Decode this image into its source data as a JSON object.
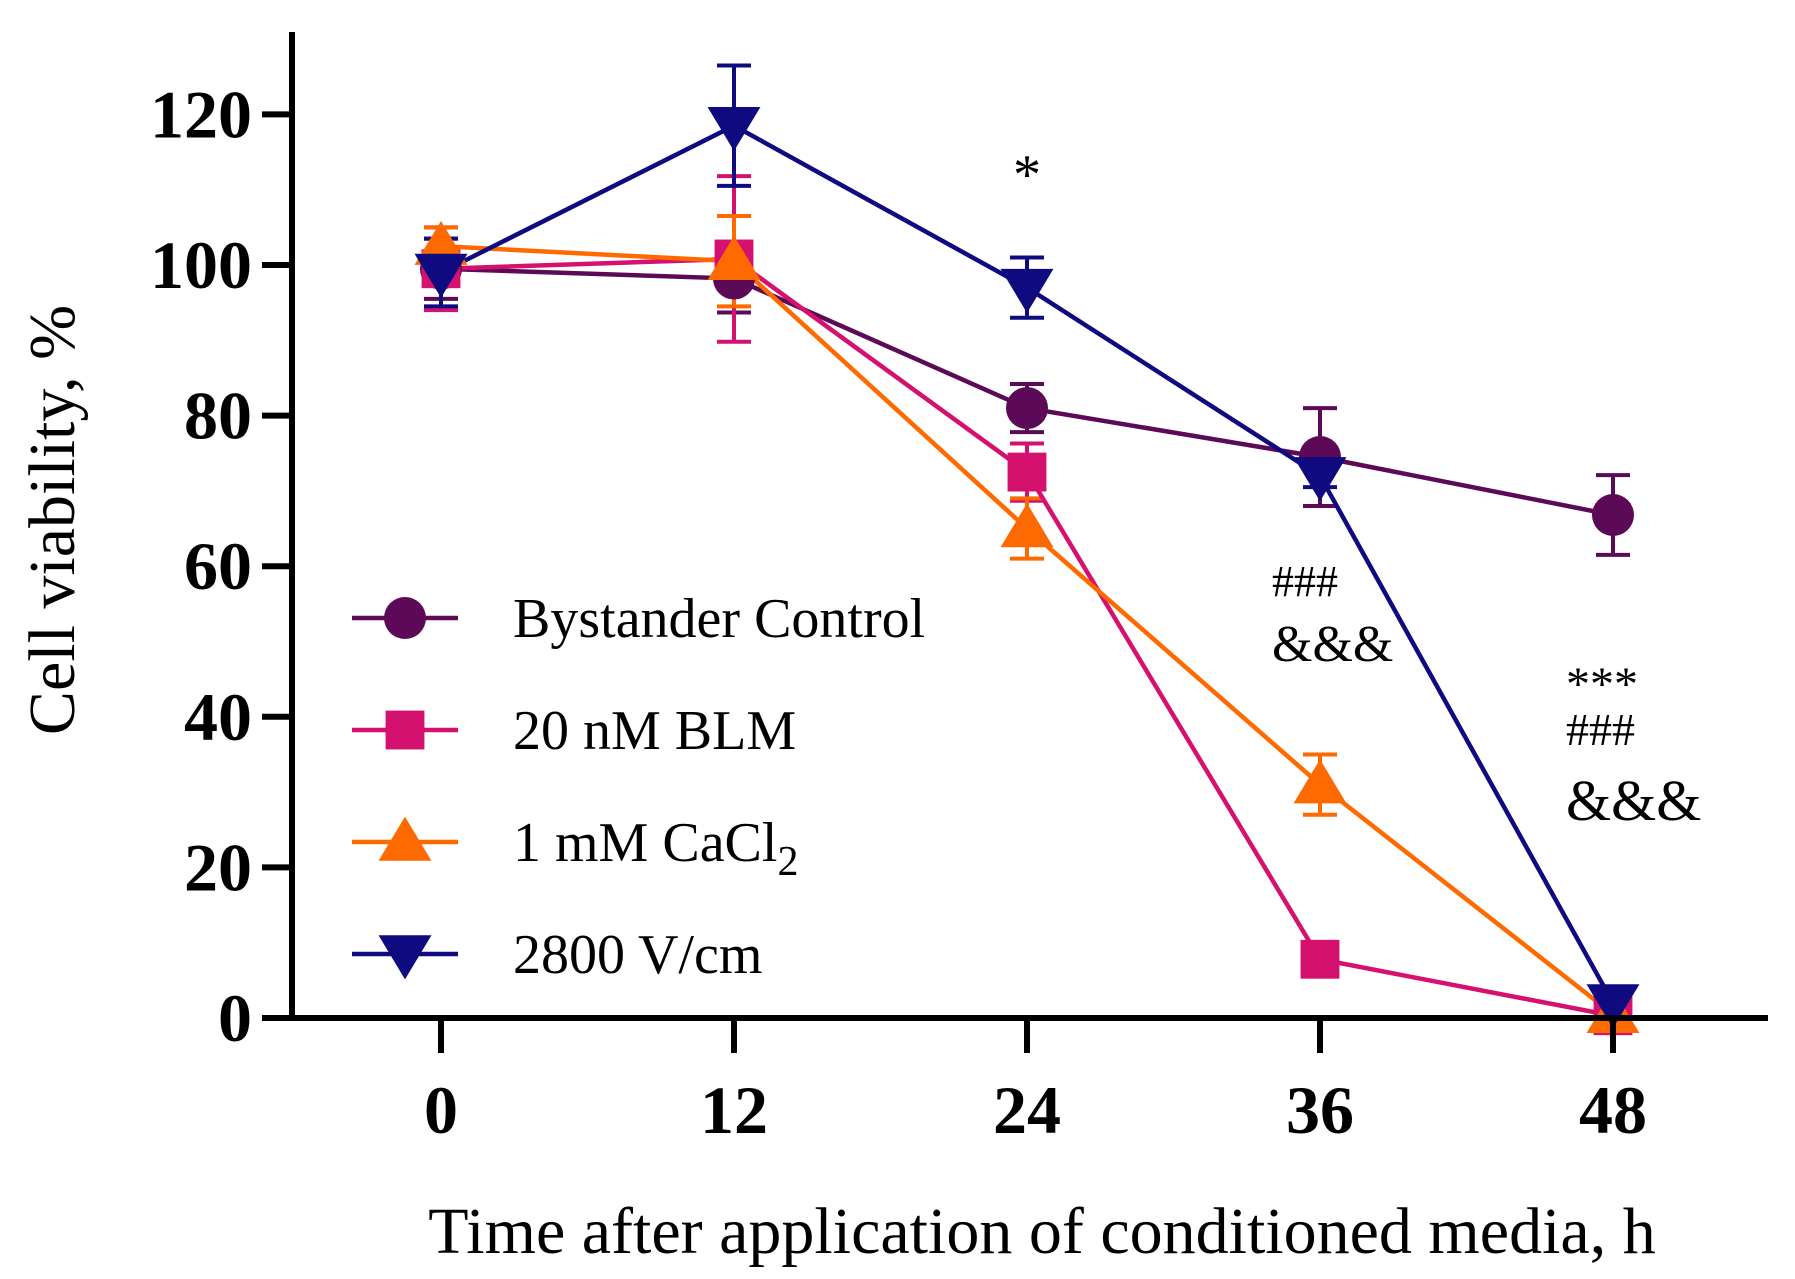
{
  "chart_data": {
    "type": "line",
    "xlabel": "Time after application of conditioned media, h",
    "ylabel": "Cell viability, %",
    "x": [
      0,
      12,
      24,
      36,
      48
    ],
    "x_tick_labels": [
      "0",
      "12",
      "24",
      "36",
      "48"
    ],
    "y_ticks": [
      0,
      20,
      40,
      60,
      80,
      100,
      120
    ],
    "y_tick_labels": [
      "0",
      "20",
      "40",
      "60",
      "80",
      "100",
      "120"
    ],
    "xlim": [
      -6,
      54
    ],
    "ylim": [
      0,
      130
    ],
    "grid": false,
    "legend_position": "left",
    "series": [
      {
        "name": "Bystander Control",
        "name_main": "Bystander Control",
        "name_sub": "",
        "color": "#5c0a57",
        "marker": "circle",
        "values": [
          99.5,
          98.2,
          81.0,
          74.5,
          66.8
        ],
        "errors": [
          4.0,
          4.5,
          3.2,
          6.5,
          5.3
        ]
      },
      {
        "name": "20 nM BLM",
        "name_main": "20 nM BLM",
        "name_sub": "",
        "color": "#d4116e",
        "marker": "square",
        "values": [
          99.5,
          100.8,
          72.5,
          7.8,
          0.3
        ],
        "errors": [
          5.5,
          11.0,
          3.8,
          0,
          0
        ]
      },
      {
        "name": "1 mM CaCl2",
        "name_main": "1 mM CaCl",
        "name_sub": "2",
        "color": "#ff6a00",
        "marker": "triangle-up",
        "values": [
          102.5,
          100.5,
          65.0,
          31.0,
          0.5
        ],
        "errors": [
          2.5,
          6.0,
          4.0,
          4.0,
          0
        ]
      },
      {
        "name": "2800 V/cm",
        "name_main": "2800 V/cm",
        "name_sub": "",
        "color": "#0f0a80",
        "marker": "triangle-down",
        "values": [
          99.0,
          118.5,
          97.0,
          72.0,
          2.0
        ],
        "errors": [
          4.5,
          8.0,
          4.0,
          1.5,
          0
        ]
      }
    ],
    "annotations": [
      {
        "x": 24,
        "lines": [
          "*"
        ]
      },
      {
        "x": 36,
        "lines": [
          "###",
          "&&&"
        ]
      },
      {
        "x": 48,
        "lines": [
          "***",
          "###",
          "&&&"
        ]
      }
    ]
  }
}
